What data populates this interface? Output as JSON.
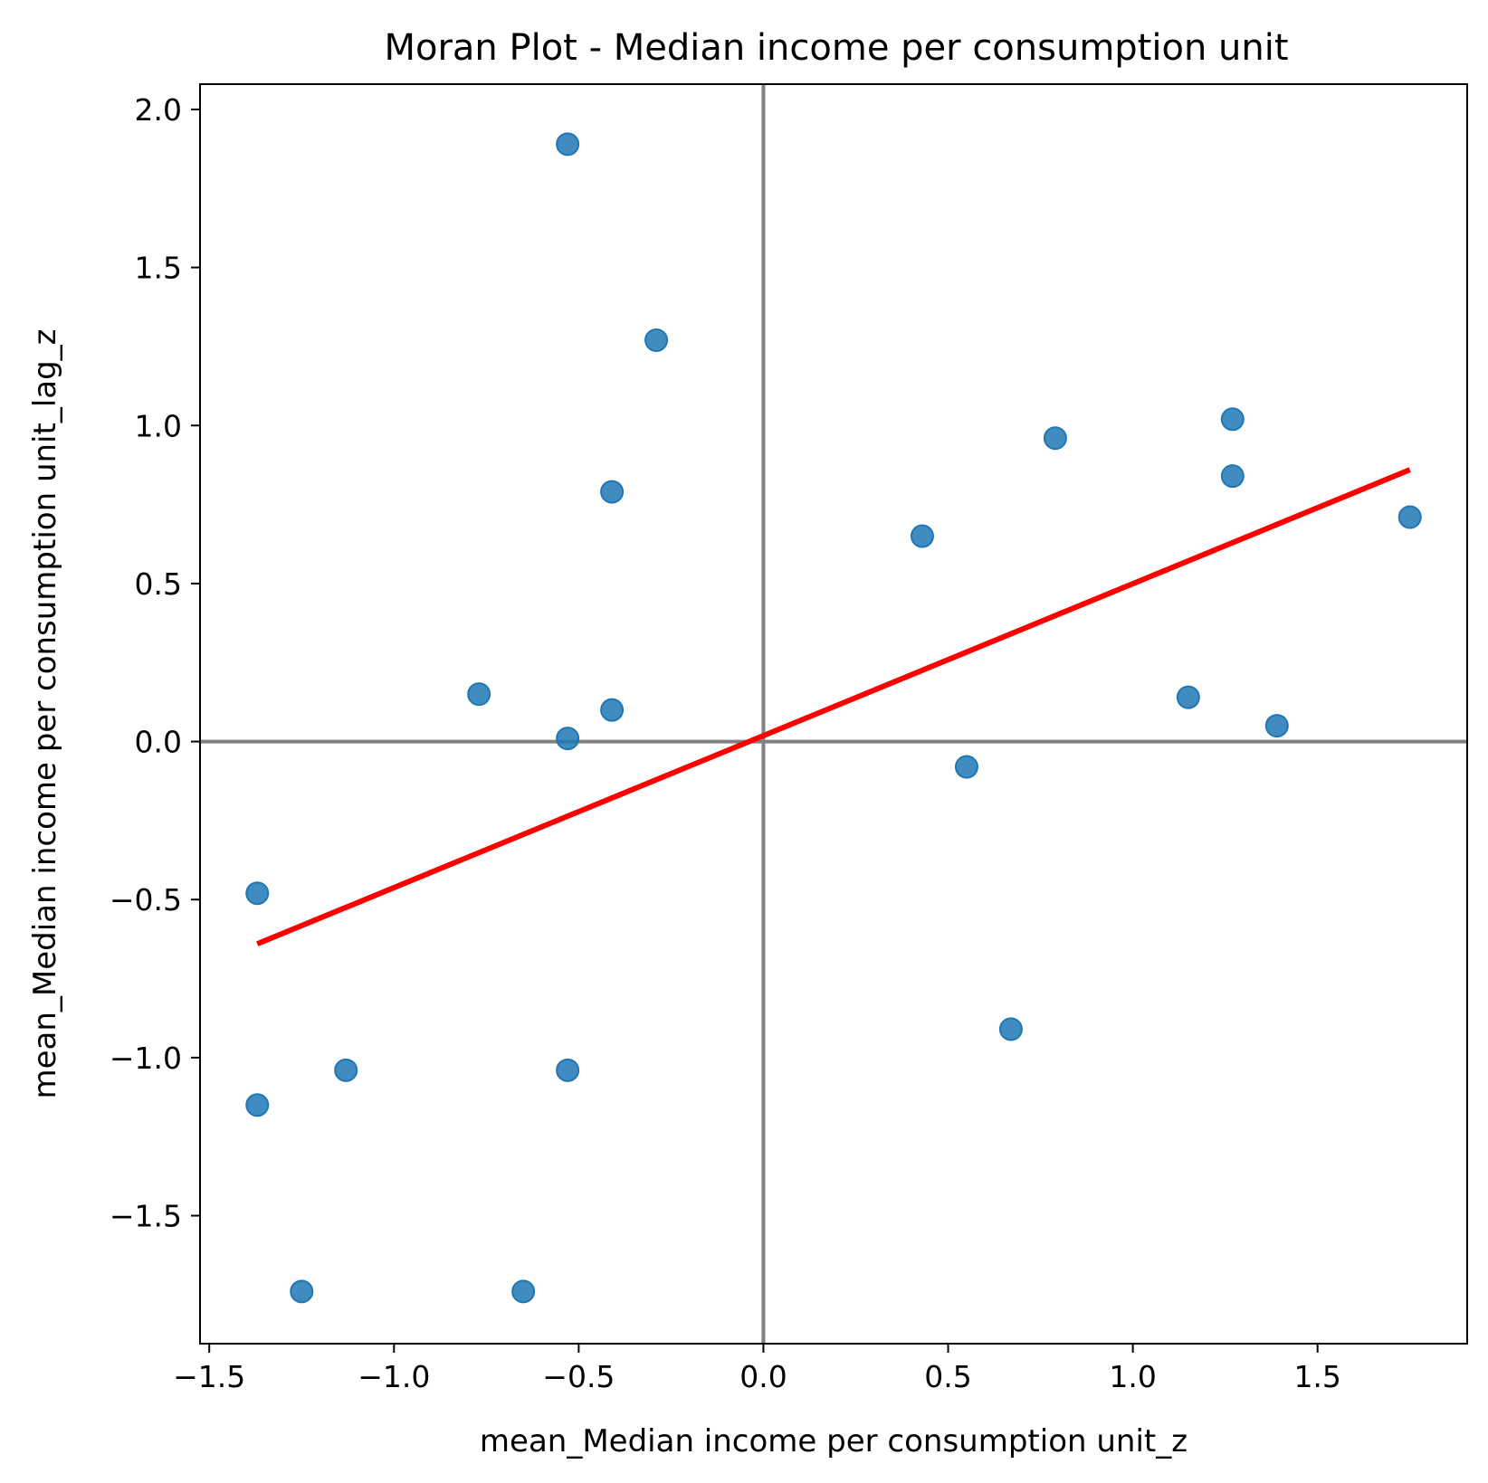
{
  "chart_data": {
    "type": "scatter",
    "title": "Moran Plot - Median income per consumption unit",
    "xlabel": "mean_Median income per consumption unit_z",
    "ylabel": "mean_Median income per consumption unit_lag_z",
    "xlim": [
      -1.525,
      1.905
    ],
    "ylim": [
      -1.905,
      2.08
    ],
    "xticks": [
      {
        "value": -1.5,
        "label": "−1.5"
      },
      {
        "value": -1.0,
        "label": "−1.0"
      },
      {
        "value": -0.5,
        "label": "−0.5"
      },
      {
        "value": 0.0,
        "label": "0.0"
      },
      {
        "value": 0.5,
        "label": "0.5"
      },
      {
        "value": 1.0,
        "label": "1.0"
      },
      {
        "value": 1.5,
        "label": "1.5"
      }
    ],
    "yticks": [
      {
        "value": -1.5,
        "label": "−1.5"
      },
      {
        "value": -1.0,
        "label": "−1.0"
      },
      {
        "value": -0.5,
        "label": "−0.5"
      },
      {
        "value": 0.0,
        "label": "0.0"
      },
      {
        "value": 0.5,
        "label": "0.5"
      },
      {
        "value": 1.0,
        "label": "1.0"
      },
      {
        "value": 1.5,
        "label": "1.5"
      },
      {
        "value": 2.0,
        "label": "2.0"
      }
    ],
    "points": [
      {
        "x": -0.53,
        "y": 1.89
      },
      {
        "x": -0.29,
        "y": 1.27
      },
      {
        "x": -0.41,
        "y": 0.79
      },
      {
        "x": -0.77,
        "y": 0.15
      },
      {
        "x": -0.41,
        "y": 0.1
      },
      {
        "x": -0.53,
        "y": 0.01
      },
      {
        "x": -1.37,
        "y": -0.48
      },
      {
        "x": -1.37,
        "y": -1.15
      },
      {
        "x": -1.13,
        "y": -1.04
      },
      {
        "x": -0.53,
        "y": -1.04
      },
      {
        "x": -1.25,
        "y": -1.74
      },
      {
        "x": -0.65,
        "y": -1.74
      },
      {
        "x": 0.43,
        "y": 0.65
      },
      {
        "x": 0.79,
        "y": 0.96
      },
      {
        "x": 1.27,
        "y": 1.02
      },
      {
        "x": 1.27,
        "y": 0.84
      },
      {
        "x": 1.75,
        "y": 0.71
      },
      {
        "x": 1.15,
        "y": 0.14
      },
      {
        "x": 1.39,
        "y": 0.05
      },
      {
        "x": 0.55,
        "y": -0.08
      },
      {
        "x": 0.67,
        "y": -0.91
      }
    ],
    "regression_line": {
      "x": [
        -1.37,
        1.75
      ],
      "y": [
        -0.64,
        0.86
      ]
    },
    "reference_lines": {
      "vertical_x": 0.0,
      "horizontal_y": 0.0
    },
    "grid": false,
    "colors": {
      "points": "#1f77b4",
      "regression": "#ff0000",
      "reference": "#808080"
    }
  }
}
